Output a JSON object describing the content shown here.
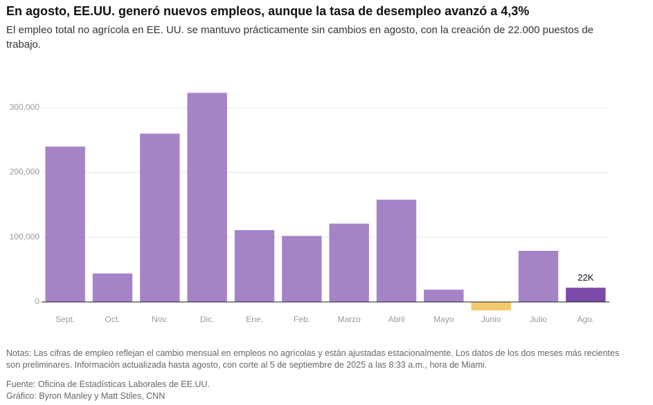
{
  "chart_data": {
    "type": "bar",
    "title": "En agosto, EE.UU. generó nuevos empleos, aunque la tasa de desempleo avanzó a 4,3%",
    "subtitle": "El empleo total no agrícola en EE. UU. se mantuvo prácticamente sin cambios en agosto, con la creación de 22.000 puestos de trabajo.",
    "categories": [
      "Sept.",
      "Oct.",
      "Nov.",
      "Dic.",
      "Ene.",
      "Feb.",
      "Marzo",
      "Abril",
      "Mayo",
      "Junio",
      "Julio",
      "Ago."
    ],
    "values": [
      240000,
      44000,
      260000,
      323000,
      111000,
      102000,
      121000,
      158000,
      19000,
      -13000,
      79000,
      22000
    ],
    "value_labels": [
      null,
      null,
      null,
      null,
      null,
      null,
      null,
      null,
      null,
      null,
      null,
      "22K"
    ],
    "colors": [
      "#a683c6",
      "#a683c6",
      "#a683c6",
      "#a683c6",
      "#a683c6",
      "#a683c6",
      "#a683c6",
      "#a683c6",
      "#a683c6",
      "#f5c96e",
      "#a683c6",
      "#7b4aa8"
    ],
    "ylim": [
      -15000,
      340000
    ],
    "yticks": [
      0,
      {
        "value": 100000,
        "label": "100,000"
      },
      {
        "value": 200000,
        "label": "200,000"
      },
      {
        "value": 300000,
        "label": "300,000"
      }
    ],
    "grid": true,
    "notes": "Notas: Las cifras de empleo reflejan el cambio mensual en empleos no agrícolas y están ajustadas estacionalmente. Los datos de los dos meses más recientes son preliminares. Información actualizada hasta agosto, con corte al 5 de septiembre de 2025 a las 8:33 a.m., hora de Miami.",
    "source": "Fuente: Oficina de Estadísticas Laborales de EE.UU.",
    "credit": "Gráfico: Byron Manley y Matt Stiles, CNN"
  }
}
